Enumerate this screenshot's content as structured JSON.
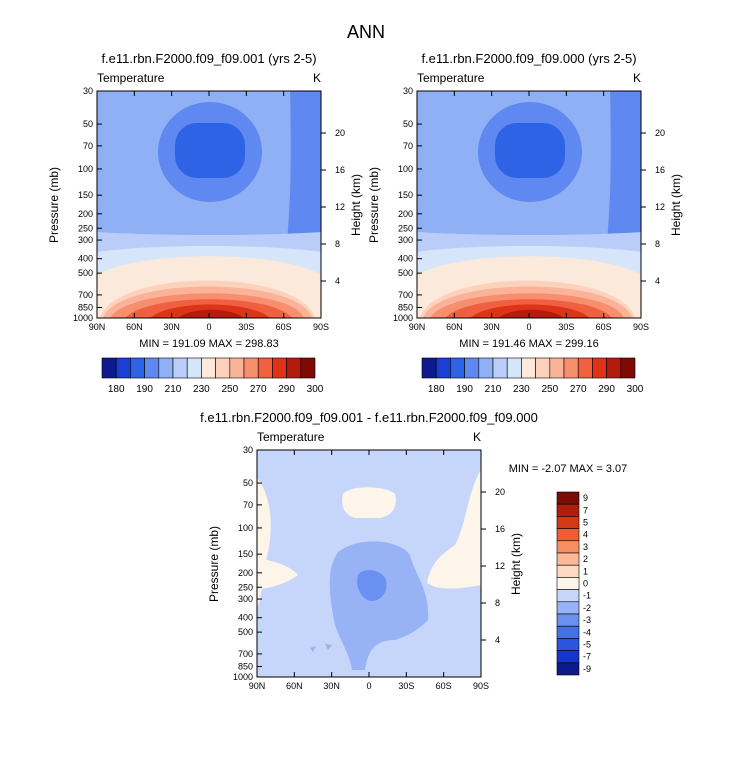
{
  "page": {
    "title": "ANN"
  },
  "colors": {
    "abs_scale": [
      "#0e1a8c",
      "#1a3fd6",
      "#2f63e6",
      "#5f88f0",
      "#8fb0f5",
      "#b9cdf8",
      "#d7e5fb",
      "#fbe9dc",
      "#fcd2bd",
      "#fab398",
      "#f78e6d",
      "#f05f3f",
      "#dd3316",
      "#b51a0c",
      "#7c0a05"
    ],
    "diff_scale": [
      "#0e1a8c",
      "#1636c9",
      "#2c55df",
      "#4471ea",
      "#6a90f1",
      "#98b2f6",
      "#c5d6fa",
      "#fdf4ea",
      "#fdd8c2",
      "#fbb797",
      "#f88e64",
      "#f05c35",
      "#d43816",
      "#b01f0c",
      "#7a0d06"
    ]
  },
  "chart_data": [
    {
      "type": "contour",
      "title": "f.e11.rbn.F2000.f09_f09.001 (yrs 2-5)",
      "left_label": "Temperature",
      "right_label": "K",
      "ylabel": "Pressure (mb)",
      "ylabel_right": "Height (km)",
      "x_ticks": [
        "90N",
        "60N",
        "30N",
        "0",
        "30S",
        "60S",
        "90S"
      ],
      "x_values": [
        90,
        60,
        30,
        0,
        -30,
        -60,
        -90
      ],
      "y_ticks": [
        "30",
        "50",
        "70",
        "100",
        "150",
        "200",
        "250",
        "300",
        "400",
        "500",
        "700",
        "850",
        "1000"
      ],
      "y_values": [
        30,
        50,
        70,
        100,
        150,
        200,
        250,
        300,
        400,
        500,
        700,
        850,
        1000
      ],
      "height_ticks": [
        "20",
        "16",
        "12",
        "8",
        "4"
      ],
      "height_values": [
        20,
        16,
        12,
        8,
        4
      ],
      "stats": "MIN = 191.09  MAX = 298.83",
      "min": 191.09,
      "max": 298.83,
      "colorbar_labels": [
        "180",
        "190",
        "210",
        "230",
        "250",
        "270",
        "290",
        "300"
      ],
      "colorbar_levels": [
        180,
        185,
        190,
        200,
        210,
        220,
        230,
        240,
        250,
        260,
        270,
        280,
        290,
        295,
        300
      ]
    },
    {
      "type": "contour",
      "title": "f.e11.rbn.F2000.f09_f09.000 (yrs 2-5)",
      "left_label": "Temperature",
      "right_label": "K",
      "ylabel": "Pressure (mb)",
      "ylabel_right": "Height (km)",
      "x_ticks": [
        "90N",
        "60N",
        "30N",
        "0",
        "30S",
        "60S",
        "90S"
      ],
      "x_values": [
        90,
        60,
        30,
        0,
        -30,
        -60,
        -90
      ],
      "y_ticks": [
        "30",
        "50",
        "70",
        "100",
        "150",
        "200",
        "250",
        "300",
        "400",
        "500",
        "700",
        "850",
        "1000"
      ],
      "y_values": [
        30,
        50,
        70,
        100,
        150,
        200,
        250,
        300,
        400,
        500,
        700,
        850,
        1000
      ],
      "height_ticks": [
        "20",
        "16",
        "12",
        "8",
        "4"
      ],
      "height_values": [
        20,
        16,
        12,
        8,
        4
      ],
      "stats": "MIN = 191.46  MAX = 299.16",
      "min": 191.46,
      "max": 299.16,
      "colorbar_labels": [
        "180",
        "190",
        "210",
        "230",
        "250",
        "270",
        "290",
        "300"
      ],
      "colorbar_levels": [
        180,
        185,
        190,
        200,
        210,
        220,
        230,
        240,
        250,
        260,
        270,
        280,
        290,
        295,
        300
      ]
    },
    {
      "type": "contour",
      "title": "f.e11.rbn.F2000.f09_f09.001 - f.e11.rbn.F2000.f09_f09.000",
      "left_label": "Temperature",
      "right_label": "K",
      "ylabel": "Pressure (mb)",
      "ylabel_right": "Height (km)",
      "x_ticks": [
        "90N",
        "60N",
        "30N",
        "0",
        "30S",
        "60S",
        "90S"
      ],
      "x_values": [
        90,
        60,
        30,
        0,
        -30,
        -60,
        -90
      ],
      "y_ticks": [
        "30",
        "50",
        "70",
        "100",
        "150",
        "200",
        "250",
        "300",
        "400",
        "500",
        "700",
        "850",
        "1000"
      ],
      "y_values": [
        30,
        50,
        70,
        100,
        150,
        200,
        250,
        300,
        400,
        500,
        700,
        850,
        1000
      ],
      "height_ticks": [
        "20",
        "16",
        "12",
        "8",
        "4"
      ],
      "height_values": [
        20,
        16,
        12,
        8,
        4
      ],
      "stats": "MIN =  -2.07  MAX =   3.07",
      "min": -2.07,
      "max": 3.07,
      "colorbar_labels": [
        "9",
        "7",
        "5",
        "4",
        "3",
        "2",
        "1",
        "0",
        "-1",
        "-2",
        "-3",
        "-4",
        "-5",
        "-7",
        "-9"
      ]
    }
  ]
}
